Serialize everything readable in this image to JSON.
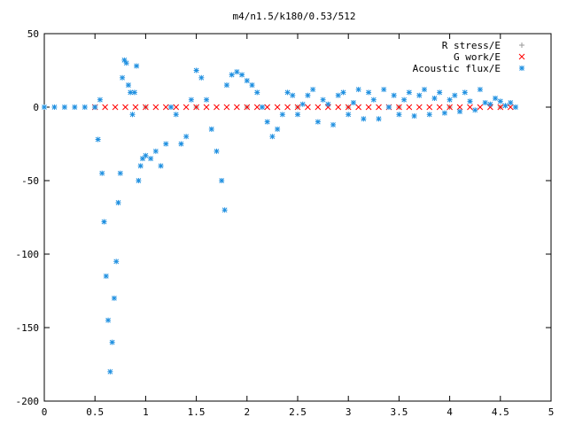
{
  "chart_data": {
    "type": "scatter",
    "title": "m4/n1.5/k180/0.53/512",
    "xlabel": "",
    "ylabel": "",
    "xlim": [
      0,
      5
    ],
    "ylim": [
      -200,
      50
    ],
    "grid": false,
    "legend_position": "top-right",
    "x_ticks": [
      "0",
      "0.5",
      "1",
      "1.5",
      "2",
      "2.5",
      "3",
      "3.5",
      "4",
      "4.5",
      "5"
    ],
    "y_ticks": [
      "50",
      "0",
      "-50",
      "-100",
      "-150",
      "-200"
    ],
    "series": [
      {
        "name": "R stress/E",
        "color": "#999999",
        "marker": "plus",
        "x": [
          0.0,
          0.5,
          1.0,
          1.5,
          2.0,
          2.5,
          3.0,
          3.5,
          4.0,
          4.5,
          4.65
        ],
        "y": [
          0,
          0,
          0,
          0,
          0,
          0,
          0,
          0,
          0,
          0,
          0
        ]
      },
      {
        "name": "G work/E",
        "color": "#ff0000",
        "marker": "cross",
        "x": [
          0.5,
          0.6,
          0.7,
          0.8,
          0.9,
          1.0,
          1.1,
          1.2,
          1.3,
          1.4,
          1.5,
          1.6,
          1.7,
          1.8,
          1.9,
          2.0,
          2.1,
          2.2,
          2.3,
          2.4,
          2.5,
          2.6,
          2.7,
          2.8,
          2.9,
          3.0,
          3.1,
          3.2,
          3.3,
          3.4,
          3.5,
          3.6,
          3.7,
          3.8,
          3.9,
          4.0,
          4.1,
          4.2,
          4.3,
          4.4,
          4.5,
          4.6
        ],
        "y": [
          0,
          0,
          0,
          0,
          0,
          0,
          0,
          0,
          0,
          0,
          0,
          0,
          0,
          0,
          0,
          0,
          0,
          0,
          0,
          0,
          0,
          0,
          0,
          0,
          0,
          0,
          0,
          0,
          0,
          0,
          0,
          0,
          0,
          0,
          0,
          0,
          0,
          0,
          0,
          0,
          0,
          0
        ]
      },
      {
        "name": "Acoustic flux/E",
        "color": "#1e8fe0",
        "marker": "star",
        "x": [
          0.0,
          0.1,
          0.2,
          0.3,
          0.4,
          0.5,
          0.53,
          0.55,
          0.57,
          0.59,
          0.61,
          0.63,
          0.65,
          0.67,
          0.69,
          0.71,
          0.73,
          0.75,
          0.77,
          0.79,
          0.81,
          0.83,
          0.85,
          0.87,
          0.89,
          0.91,
          0.93,
          0.95,
          0.97,
          1.0,
          1.05,
          1.1,
          1.15,
          1.2,
          1.25,
          1.3,
          1.35,
          1.4,
          1.45,
          1.5,
          1.55,
          1.6,
          1.65,
          1.7,
          1.75,
          1.78,
          1.8,
          1.85,
          1.9,
          1.95,
          2.0,
          2.05,
          2.1,
          2.15,
          2.2,
          2.25,
          2.3,
          2.35,
          2.4,
          2.45,
          2.5,
          2.55,
          2.6,
          2.65,
          2.7,
          2.75,
          2.8,
          2.85,
          2.9,
          2.95,
          3.0,
          3.05,
          3.1,
          3.15,
          3.2,
          3.25,
          3.3,
          3.35,
          3.4,
          3.45,
          3.5,
          3.55,
          3.6,
          3.65,
          3.7,
          3.75,
          3.8,
          3.85,
          3.9,
          3.95,
          4.0,
          4.05,
          4.1,
          4.15,
          4.2,
          4.25,
          4.3,
          4.35,
          4.4,
          4.45,
          4.5,
          4.55,
          4.6,
          4.65
        ],
        "y": [
          0,
          0,
          0,
          0,
          0,
          0,
          -22,
          5,
          -45,
          -78,
          -115,
          -145,
          -180,
          -160,
          -130,
          -105,
          -65,
          -45,
          20,
          32,
          30,
          15,
          10,
          -5,
          10,
          28,
          -50,
          -40,
          -35,
          -33,
          -35,
          -30,
          -40,
          -25,
          0,
          -5,
          -25,
          -20,
          5,
          25,
          20,
          5,
          -15,
          -30,
          -50,
          -70,
          15,
          22,
          24,
          22,
          18,
          15,
          10,
          0,
          -10,
          -20,
          -15,
          -5,
          10,
          8,
          -5,
          2,
          8,
          12,
          -10,
          5,
          2,
          -12,
          8,
          10,
          -5,
          3,
          12,
          -8,
          10,
          5,
          -8,
          12,
          0,
          8,
          -5,
          5,
          10,
          -6,
          8,
          12,
          -5,
          6,
          10,
          -4,
          5,
          8,
          -3,
          10,
          4,
          -2,
          12,
          3,
          2,
          6,
          4,
          1,
          3,
          0
        ]
      }
    ]
  }
}
